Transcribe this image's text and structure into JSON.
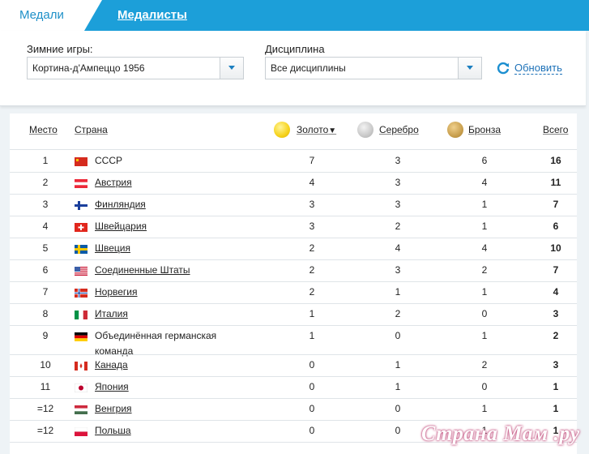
{
  "tabs": {
    "active": "Медали",
    "other": "Медалисты"
  },
  "filters": {
    "games_label": "Зимние игры:",
    "games_value": "Кортина-д'Ампеццо 1956",
    "discipline_label": "Дисциплина",
    "discipline_value": "Все дисциплины",
    "refresh_label": "Обновить"
  },
  "table": {
    "headers": {
      "place": "Место",
      "country": "Страна",
      "gold": "Золото",
      "silver": "Серебро",
      "bronze": "Бронза",
      "total": "Всего"
    },
    "rows": [
      {
        "place": "1",
        "country": "СССР",
        "gold": "7",
        "silver": "3",
        "bronze": "6",
        "total": "16"
      },
      {
        "place": "2",
        "country": "Австрия",
        "gold": "4",
        "silver": "3",
        "bronze": "4",
        "total": "11"
      },
      {
        "place": "3",
        "country": "Финляндия",
        "gold": "3",
        "silver": "3",
        "bronze": "1",
        "total": "7"
      },
      {
        "place": "4",
        "country": "Швейцария",
        "gold": "3",
        "silver": "2",
        "bronze": "1",
        "total": "6"
      },
      {
        "place": "5",
        "country": "Швеция",
        "gold": "2",
        "silver": "4",
        "bronze": "4",
        "total": "10"
      },
      {
        "place": "6",
        "country": "Соединенные Штаты",
        "gold": "2",
        "silver": "3",
        "bronze": "2",
        "total": "7"
      },
      {
        "place": "7",
        "country": "Норвегия",
        "gold": "2",
        "silver": "1",
        "bronze": "1",
        "total": "4"
      },
      {
        "place": "8",
        "country": "Италия",
        "gold": "1",
        "silver": "2",
        "bronze": "0",
        "total": "3"
      },
      {
        "place": "9",
        "country": "Объединённая германская команда",
        "gold": "1",
        "silver": "0",
        "bronze": "1",
        "total": "2"
      },
      {
        "place": "10",
        "country": "Канада",
        "gold": "0",
        "silver": "1",
        "bronze": "2",
        "total": "3"
      },
      {
        "place": "11",
        "country": "Япония",
        "gold": "0",
        "silver": "1",
        "bronze": "0",
        "total": "1"
      },
      {
        "place": "=12",
        "country": "Венгрия",
        "gold": "0",
        "silver": "0",
        "bronze": "1",
        "total": "1"
      },
      {
        "place": "=12",
        "country": "Польша",
        "gold": "0",
        "silver": "0",
        "bronze": "1",
        "total": "1"
      }
    ]
  },
  "watermark": "Страна Мам .ру",
  "colors": {
    "accent": "#1c9fd9",
    "link": "#1e72b8"
  },
  "icons": [
    "refresh-icon",
    "sort-down-icon",
    "chevron-down-icon",
    "gold-medal-icon",
    "silver-medal-icon",
    "bronze-medal-icon"
  ]
}
